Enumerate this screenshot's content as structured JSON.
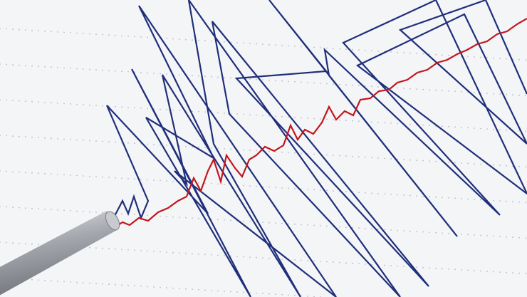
{
  "scene": {
    "subject": "seismograph-trace",
    "colors": {
      "paper": "#f4f5f7",
      "grid_dots": "#b9bcc4",
      "trace_blue": "#1f2f7a",
      "trace_red": "#c3161c",
      "stylus": "#a9acb2"
    }
  }
}
